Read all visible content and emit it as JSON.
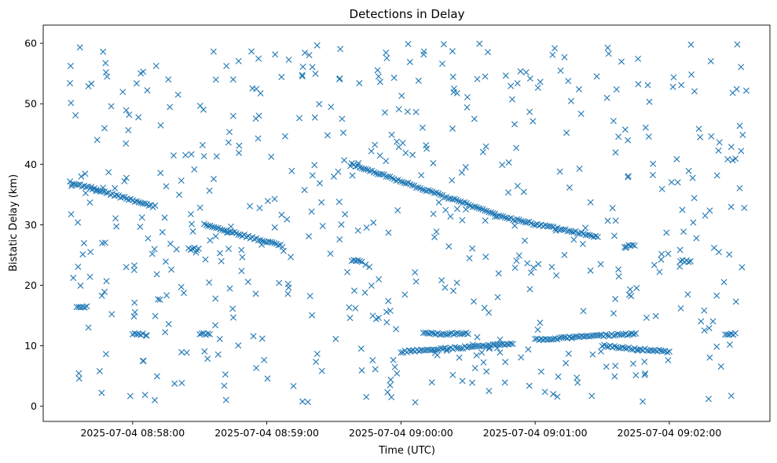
{
  "chart_data": {
    "type": "scatter",
    "title": "Detections in Delay",
    "xlabel": "Time (UTC)",
    "ylabel": "Bistatic Delay (km)",
    "marker": "x",
    "color": "#1f77b4",
    "grid": false,
    "xlim": [
      "2025-07-04 08:57:20",
      "2025-07-04 09:02:45"
    ],
    "ylim": [
      -2.5,
      63
    ],
    "x_tick_labels": [
      "2025-07-04 08:58:00",
      "2025-07-04 08:59:00",
      "2025-07-04 09:00:00",
      "2025-07-04 09:01:00",
      "2025-07-04 09:02:00"
    ],
    "y_tick_labels": [
      "0",
      "10",
      "20",
      "30",
      "40",
      "50",
      "60"
    ],
    "tracks": [
      {
        "x_start": "2025-07-04 08:57:32",
        "x_end": "2025-07-04 08:58:10",
        "y_start": 37.0,
        "y_end": 33.0
      },
      {
        "x_start": "2025-07-04 08:58:32",
        "x_end": "2025-07-04 08:59:07",
        "y_start": 30.0,
        "y_end": 26.5
      },
      {
        "x_start": "2025-07-04 08:59:38",
        "x_end": "2025-07-04 09:00:42",
        "y_start": 40.0,
        "y_end": 31.8
      },
      {
        "x_start": "2025-07-04 09:00:42",
        "x_end": "2025-07-04 09:01:28",
        "y_start": 31.5,
        "y_end": 28.0
      },
      {
        "x_start": "2025-07-04 09:00:00",
        "x_end": "2025-07-04 09:00:50",
        "y_start": 9.0,
        "y_end": 10.3
      },
      {
        "x_start": "2025-07-04 09:00:10",
        "x_end": "2025-07-04 09:00:30",
        "y_start": 12.0,
        "y_end": 12.0
      },
      {
        "x_start": "2025-07-04 09:01:00",
        "x_end": "2025-07-04 09:01:45",
        "y_start": 11.0,
        "y_end": 12.0
      },
      {
        "x_start": "2025-07-04 09:01:30",
        "x_end": "2025-07-04 09:02:00",
        "y_start": 10.0,
        "y_end": 9.0
      }
    ],
    "clusters": [
      {
        "x": "2025-07-04 08:57:35",
        "y": 16.5
      },
      {
        "x": "2025-07-04 08:58:00",
        "y": 12.0
      },
      {
        "x": "2025-07-04 08:58:25",
        "y": 26.0
      },
      {
        "x": "2025-07-04 08:58:30",
        "y": 12.0
      },
      {
        "x": "2025-07-04 08:59:38",
        "y": 24.0
      },
      {
        "x": "2025-07-04 09:01:40",
        "y": 26.5
      },
      {
        "x": "2025-07-04 09:02:25",
        "y": 12.0
      },
      {
        "x": "2025-07-04 09:02:05",
        "y": 24.0
      }
    ],
    "noise_points": 560
  }
}
